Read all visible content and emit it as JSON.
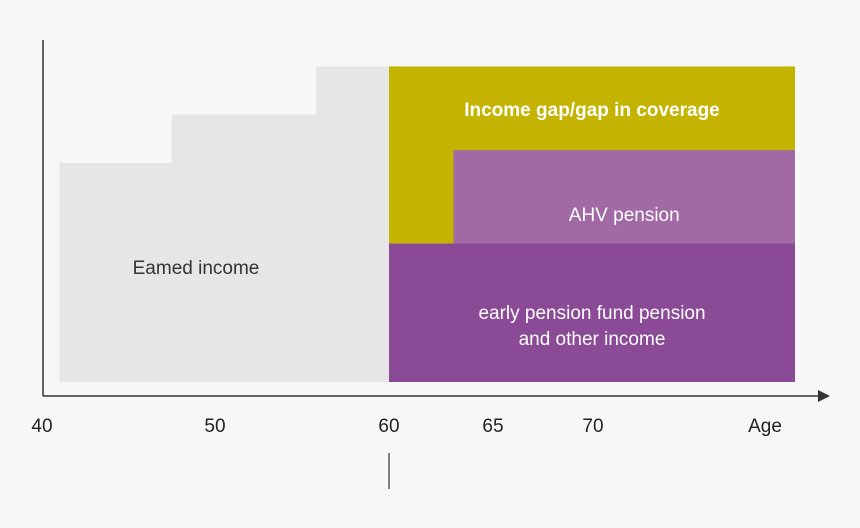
{
  "chart_data": {
    "type": "area",
    "title": "",
    "xlabel": "Age",
    "ylabel": "",
    "x_ticks": [
      40,
      50,
      60,
      65,
      70
    ],
    "x_tick_labels": [
      "40",
      "50",
      "60",
      "65",
      "70"
    ],
    "marker_at": 60,
    "regions": [
      {
        "key": "earned",
        "label": "Eamed income",
        "color": "#e6e6e6",
        "label_color": "#333333",
        "bold": false,
        "steps": [
          {
            "from": 41,
            "to": 47.5,
            "level": 0.68
          },
          {
            "from": 47.5,
            "to": 55.8,
            "level": 0.83
          },
          {
            "from": 55.8,
            "to": 60,
            "level": 0.98
          }
        ]
      },
      {
        "key": "gap",
        "label": "Income gap/gap in coverage",
        "color": "#c4b300",
        "label_color": "#ffffff",
        "bold": true
      },
      {
        "key": "ahv",
        "label": "AHV pension",
        "color": "#a16aa5",
        "label_color": "#ffffff",
        "bold": false
      },
      {
        "key": "pension_fund",
        "label_lines": [
          "early pension fund pension",
          "and other income"
        ],
        "color": "#8a4a96",
        "label_color": "#ffffff",
        "bold": false
      }
    ],
    "retirement_block": {
      "from": 60,
      "to": 77.5,
      "level": 0.98
    },
    "ahv_start": 63.1,
    "ahv_top": 0.72,
    "pension_fund_top": 0.43
  }
}
